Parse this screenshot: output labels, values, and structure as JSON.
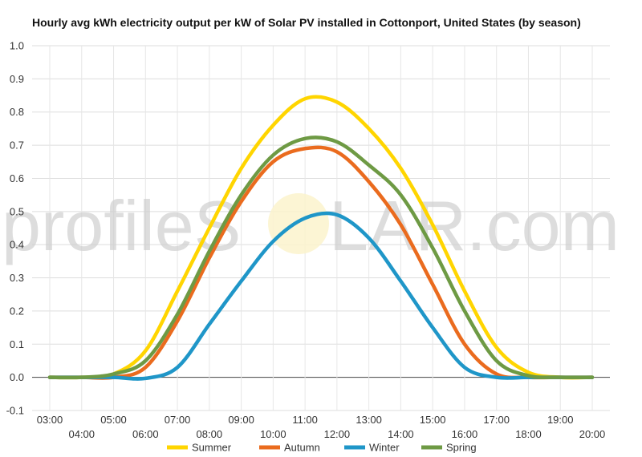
{
  "watermark": {
    "left_text": "profileS",
    "right_text": "LAR.com"
  },
  "chart_data": {
    "type": "line",
    "title": "Hourly avg kWh electricity output per kW of Solar PV installed in Cottonport, United States (by season)",
    "xlabel": "",
    "ylabel": "",
    "x_tick_labels": [
      "03:00",
      "04:00",
      "05:00",
      "06:00",
      "07:00",
      "08:00",
      "09:00",
      "10:00",
      "11:00",
      "12:00",
      "13:00",
      "14:00",
      "15:00",
      "16:00",
      "17:00",
      "18:00",
      "19:00",
      "20:00"
    ],
    "y_tick_labels": [
      "-0.1",
      "0.0",
      "0.1",
      "0.2",
      "0.3",
      "0.4",
      "0.5",
      "0.6",
      "0.7",
      "0.8",
      "0.9",
      "1.0"
    ],
    "ylim": [
      -0.1,
      1.0
    ],
    "x_hours": [
      3,
      4,
      5,
      6,
      7,
      8,
      9,
      10,
      11,
      12,
      13,
      14,
      15,
      16,
      17,
      18,
      19,
      20
    ],
    "grid": true,
    "legend_position": "bottom",
    "series": [
      {
        "name": "Summer",
        "color": "#ffd500",
        "values": [
          0.0,
          0.0,
          0.01,
          0.08,
          0.26,
          0.45,
          0.63,
          0.76,
          0.84,
          0.83,
          0.75,
          0.63,
          0.46,
          0.26,
          0.09,
          0.015,
          0.0,
          0.0
        ]
      },
      {
        "name": "Autumn",
        "color": "#ea6b1e",
        "values": [
          0.0,
          0.0,
          0.0,
          0.03,
          0.17,
          0.36,
          0.53,
          0.65,
          0.69,
          0.68,
          0.59,
          0.46,
          0.28,
          0.1,
          0.01,
          0.0,
          0.0,
          0.0
        ]
      },
      {
        "name": "Winter",
        "color": "#1f96c8",
        "values": [
          0.0,
          0.0,
          0.0,
          -0.003,
          0.03,
          0.16,
          0.29,
          0.41,
          0.48,
          0.49,
          0.42,
          0.29,
          0.15,
          0.03,
          0.0,
          0.0,
          0.0,
          0.0
        ]
      },
      {
        "name": "Spring",
        "color": "#6e9a44",
        "values": [
          0.0,
          0.0,
          0.01,
          0.05,
          0.19,
          0.38,
          0.55,
          0.67,
          0.72,
          0.71,
          0.64,
          0.55,
          0.39,
          0.2,
          0.05,
          0.005,
          0.0,
          0.0
        ]
      }
    ]
  }
}
